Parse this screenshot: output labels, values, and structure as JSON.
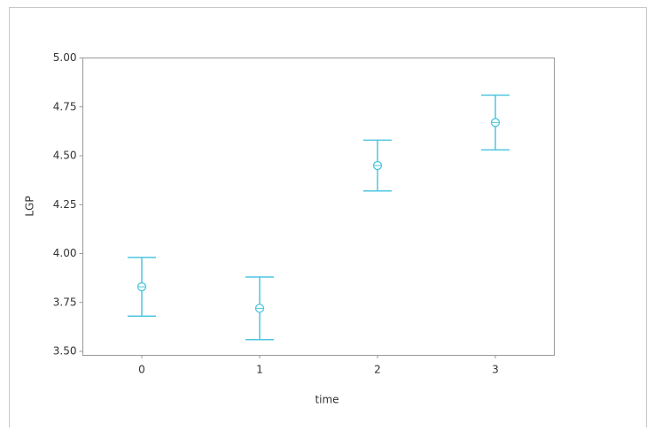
{
  "chart_data": {
    "type": "errorbar",
    "x_label": "time",
    "y_label": "LGP",
    "categories": [
      "0",
      "1",
      "2",
      "3"
    ],
    "values": [
      3.83,
      3.72,
      4.45,
      4.67
    ],
    "errors": [
      0.15,
      0.16,
      0.13,
      0.14
    ],
    "color": "#4fc6df",
    "ylim": [
      3.5,
      5.0
    ],
    "yticks": [
      {
        "value": 3.5,
        "label": "3.50"
      },
      {
        "value": 3.75,
        "label": "3.75"
      },
      {
        "value": 4.0,
        "label": "4.00"
      },
      {
        "value": 4.25,
        "label": "4.25"
      },
      {
        "value": 4.5,
        "label": "4.50"
      },
      {
        "value": 4.75,
        "label": "4.75"
      },
      {
        "value": 5.0,
        "label": "5.00"
      }
    ],
    "grid": false
  }
}
